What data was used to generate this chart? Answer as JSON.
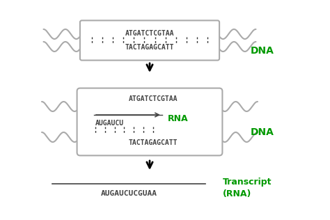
{
  "bg_color": "#ffffff",
  "dna_color": "#aaaaaa",
  "text_color": "#444444",
  "green_color": "#009900",
  "top_strand1": "ATGATCTCGTAA",
  "top_strand2": "TACTAGAGCATT",
  "mid_strand_top": "ATGATCTCGTAA",
  "mid_rna": "AUGAUCU",
  "mid_strand_bot": "TACTAGAGCATT",
  "bot_rna": "AUGAUCUCGUAA",
  "dna_label": "DNA",
  "rna_label": "RNA",
  "transcript_label": "Transcript\n(RNA)",
  "fig_w": 4.74,
  "fig_h": 3.16,
  "dpi": 100
}
